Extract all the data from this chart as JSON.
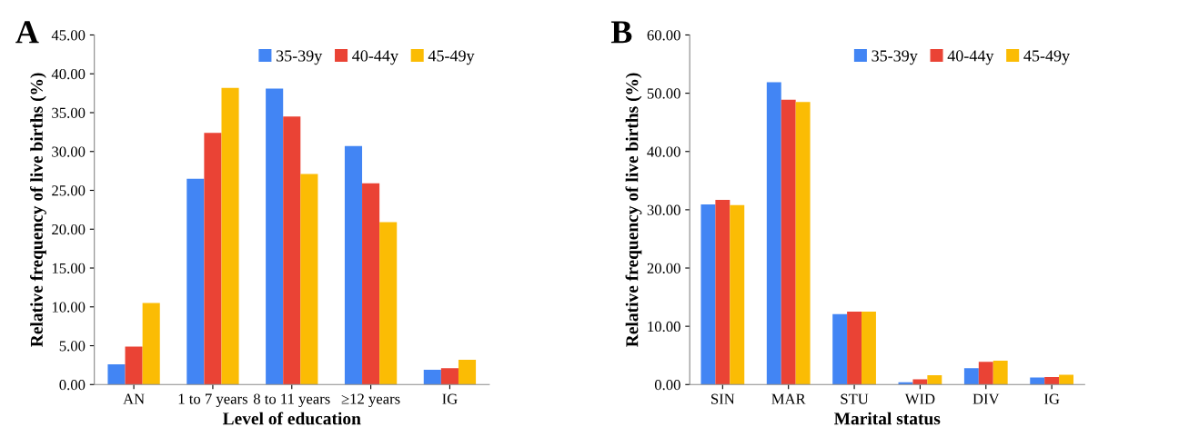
{
  "chart_data": [
    {
      "type": "bar",
      "title": "A",
      "xlabel": "Level of education",
      "ylabel": "Relative frequency of live births (%)",
      "categories": [
        "AN",
        "1 to 7 years",
        "8 to 11 years",
        "≥12 years",
        "IG"
      ],
      "series": [
        {
          "name": "35-39y",
          "color": "#4285f4",
          "values": [
            2.6,
            26.5,
            38.1,
            30.7,
            1.9
          ]
        },
        {
          "name": "40-44y",
          "color": "#ea4335",
          "values": [
            4.9,
            32.4,
            34.5,
            25.9,
            2.1
          ]
        },
        {
          "name": "45-49y",
          "color": "#fbbc04",
          "values": [
            10.5,
            38.2,
            27.1,
            20.9,
            3.2
          ]
        }
      ],
      "ylim": [
        0,
        45
      ],
      "yticks": [
        {
          "value": 0,
          "label": "0.00"
        },
        {
          "value": 5,
          "label": "5.00"
        },
        {
          "value": 10,
          "label": "10.00"
        },
        {
          "value": 15,
          "label": "15.00"
        },
        {
          "value": 20,
          "label": "20.00"
        },
        {
          "value": 25,
          "label": "25.00"
        },
        {
          "value": 30,
          "label": "30.00"
        },
        {
          "value": 35,
          "label": "35.00"
        },
        {
          "value": 40,
          "label": "40.00"
        },
        {
          "value": 45,
          "label": "45.00"
        }
      ],
      "legend": "top right",
      "grid": false
    },
    {
      "type": "bar",
      "title": "B",
      "xlabel": "Marital status",
      "ylabel": "Relative frequency of live births (%)",
      "categories": [
        "SIN",
        "MAR",
        "STU",
        "WID",
        "DIV",
        "IG"
      ],
      "series": [
        {
          "name": "35-39y",
          "color": "#4285f4",
          "values": [
            30.9,
            51.9,
            12.1,
            0.4,
            2.8,
            1.2
          ]
        },
        {
          "name": "40-44y",
          "color": "#ea4335",
          "values": [
            31.7,
            48.9,
            12.5,
            0.9,
            3.9,
            1.3
          ]
        },
        {
          "name": "45-49y",
          "color": "#fbbc04",
          "values": [
            30.8,
            48.5,
            12.5,
            1.6,
            4.1,
            1.7
          ]
        }
      ],
      "ylim": [
        0,
        60
      ],
      "yticks": [
        {
          "value": 0,
          "label": "0.00"
        },
        {
          "value": 10,
          "label": "10.00"
        },
        {
          "value": 20,
          "label": "20.00"
        },
        {
          "value": 30,
          "label": "30.00"
        },
        {
          "value": 40,
          "label": "40.00"
        },
        {
          "value": 50,
          "label": "50.00"
        },
        {
          "value": 60,
          "label": "60.00"
        }
      ],
      "legend": "top right",
      "grid": false
    }
  ]
}
